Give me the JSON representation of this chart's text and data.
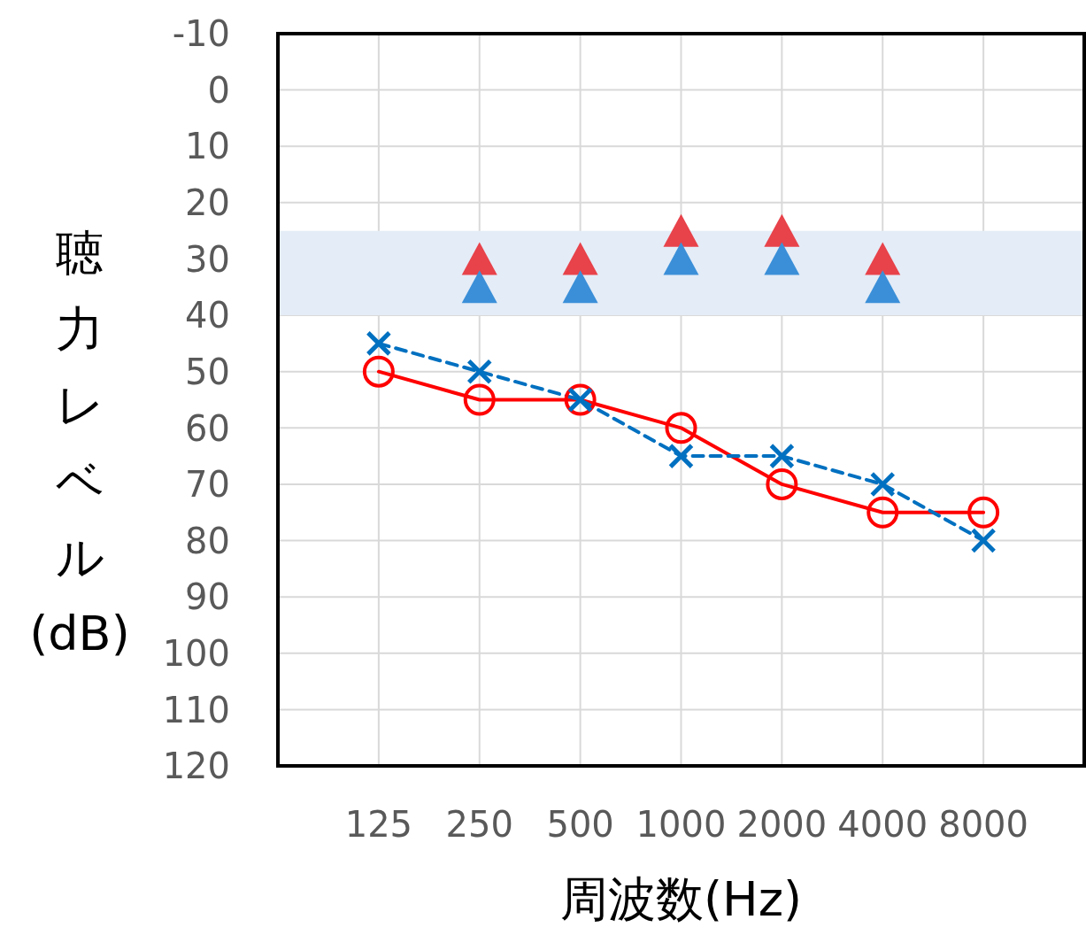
{
  "chart_data": {
    "type": "line",
    "categories": [
      "125",
      "250",
      "500",
      "1000",
      "2000",
      "4000",
      "8000"
    ],
    "xlabel": "周波数(Hz)",
    "ylabel": "聴力レベル(dB)",
    "ylim": [
      120,
      -10
    ],
    "yticks": [
      -10,
      0,
      10,
      20,
      30,
      40,
      50,
      60,
      70,
      80,
      90,
      100,
      110,
      120
    ],
    "grid": true,
    "bands": [
      {
        "axis": "y",
        "from": 25,
        "to": 40,
        "color": "#e4ecf7"
      }
    ],
    "series": [
      {
        "color": "#ff0000",
        "marker": "circle",
        "line_style": "solid",
        "values": [
          50,
          55,
          55,
          60,
          70,
          75,
          75
        ]
      },
      {
        "color": "#0070c0",
        "marker": "cross",
        "line_style": "dashed",
        "values": [
          45,
          50,
          55,
          65,
          65,
          70,
          80
        ]
      },
      {
        "type": "scatter",
        "color": "#e8424a",
        "marker": "triangle",
        "values": [
          null,
          30,
          30,
          25,
          25,
          30,
          null
        ]
      },
      {
        "type": "scatter",
        "color": "#3b8fd8",
        "marker": "triangle",
        "values": [
          null,
          35,
          35,
          30,
          30,
          35,
          null
        ]
      }
    ]
  }
}
